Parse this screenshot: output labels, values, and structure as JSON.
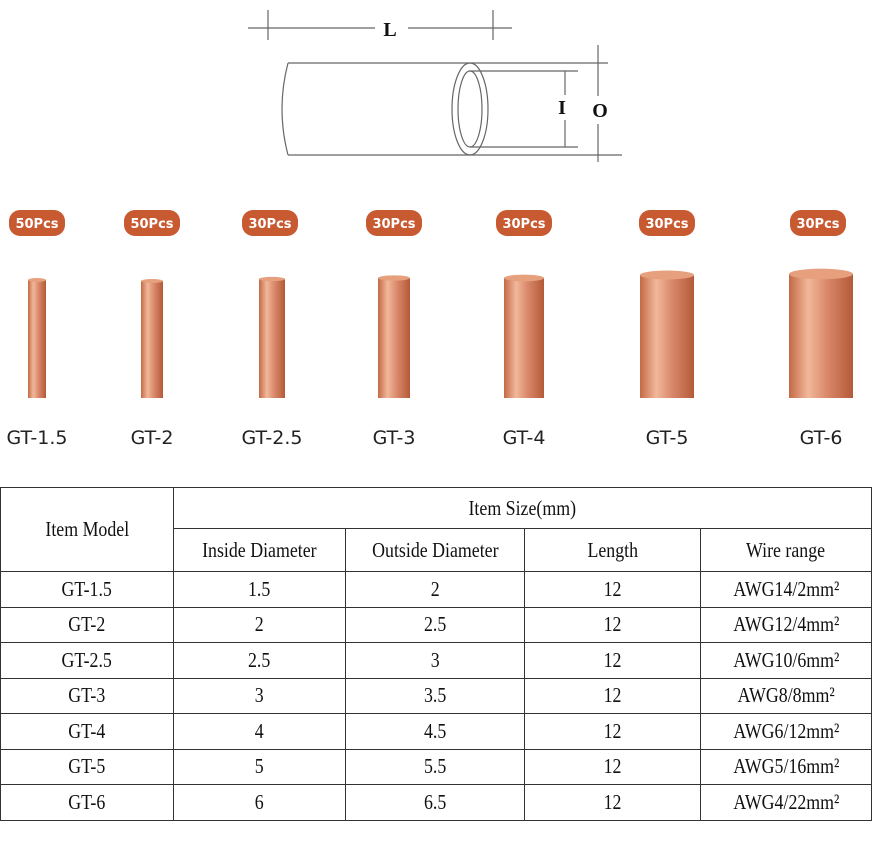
{
  "diagram": {
    "length_label": "L",
    "inner_label": "I",
    "outer_label": "O"
  },
  "products": [
    {
      "badge": "50Pcs",
      "name": "GT-1.5"
    },
    {
      "badge": "50Pcs",
      "name": "GT-2"
    },
    {
      "badge": "30Pcs",
      "name": "GT-2.5"
    },
    {
      "badge": "30Pcs",
      "name": "GT-3"
    },
    {
      "badge": "30Pcs",
      "name": "GT-4"
    },
    {
      "badge": "30Pcs",
      "name": "GT-5"
    },
    {
      "badge": "30Pcs",
      "name": "GT-6"
    }
  ],
  "table": {
    "model_header": "Item Model",
    "size_header": "Item Size(mm)",
    "columns": [
      "Inside Diameter",
      "Outside Diameter",
      "Length",
      "Wire range"
    ],
    "rows": [
      [
        "GT-1.5",
        "1.5",
        "2",
        "12",
        "AWG14/2mm²"
      ],
      [
        "GT-2",
        "2",
        "2.5",
        "12",
        "AWG12/4mm²"
      ],
      [
        "GT-2.5",
        "2.5",
        "3",
        "12",
        "AWG10/6mm²"
      ],
      [
        "GT-3",
        "3",
        "3.5",
        "12",
        "AWG8/8mm²"
      ],
      [
        "GT-4",
        "4",
        "4.5",
        "12",
        "AWG6/12mm²"
      ],
      [
        "GT-5",
        "5",
        "5.5",
        "12",
        "AWG5/16mm²"
      ],
      [
        "GT-6",
        "6",
        "6.5",
        "12",
        "AWG4/22mm²"
      ]
    ]
  }
}
